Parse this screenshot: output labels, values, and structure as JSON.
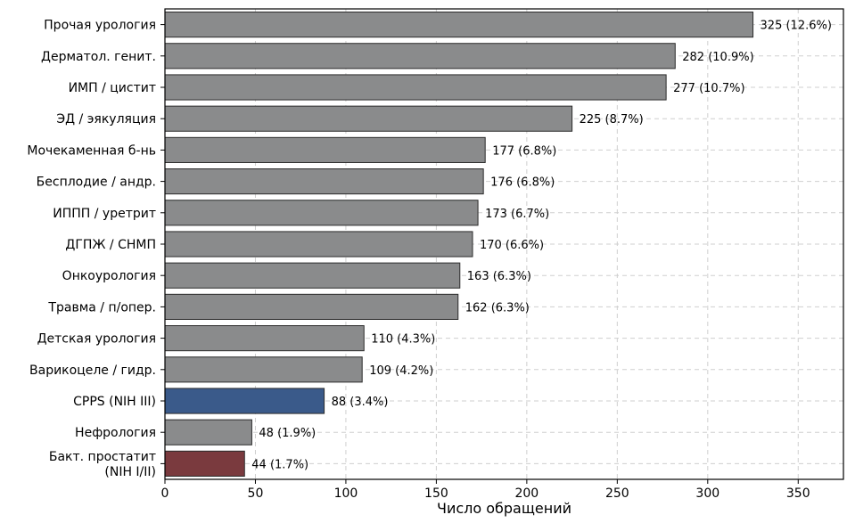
{
  "chart_data": {
    "type": "bar",
    "orientation": "horizontal",
    "xlabel": "Число обращений",
    "ylabel": "",
    "title": "",
    "xlim": [
      0,
      375
    ],
    "xticks": [
      0,
      50,
      100,
      150,
      200,
      250,
      300,
      350
    ],
    "grid": true,
    "legend": "none",
    "categories": [
      [
        "Прочая урология"
      ],
      [
        "Дерматол. генит."
      ],
      [
        "ИМП / цистит"
      ],
      [
        "ЭД / эякуляция"
      ],
      [
        "Мочекаменная б-нь"
      ],
      [
        "Бесплодие / андр."
      ],
      [
        "ИППП / уретрит"
      ],
      [
        "ДГПЖ / СНМП"
      ],
      [
        "Онкоурология"
      ],
      [
        "Травма / п/опер."
      ],
      [
        "Детская урология"
      ],
      [
        "Варикоцеле / гидр."
      ],
      [
        "CPPS (NIH III)"
      ],
      [
        "Нефрология"
      ],
      [
        "Бакт. простатит",
        "(NIH I/II)"
      ]
    ],
    "values": [
      325,
      282,
      277,
      225,
      177,
      176,
      173,
      170,
      163,
      162,
      110,
      109,
      88,
      48,
      44
    ],
    "data_labels": [
      "325 (12.6%)",
      "282 (10.9%)",
      "277 (10.7%)",
      "225 (8.7%)",
      "177 (6.8%)",
      "176 (6.8%)",
      "173 (6.7%)",
      "170 (6.6%)",
      "163 (6.3%)",
      "162 (6.3%)",
      "110 (4.3%)",
      "109 (4.2%)",
      "88 (3.4%)",
      "48 (1.9%)",
      "44 (1.7%)"
    ],
    "bar_colors": [
      "#8a8b8c",
      "#8a8b8c",
      "#8a8b8c",
      "#8a8b8c",
      "#8a8b8c",
      "#8a8b8c",
      "#8a8b8c",
      "#8a8b8c",
      "#8a8b8c",
      "#8a8b8c",
      "#8a8b8c",
      "#8a8b8c",
      "#3a5a8a",
      "#8a8b8c",
      "#7a3a3e"
    ],
    "edge_color": "#2b2b2b",
    "grid_color": "#cfcfcf"
  }
}
